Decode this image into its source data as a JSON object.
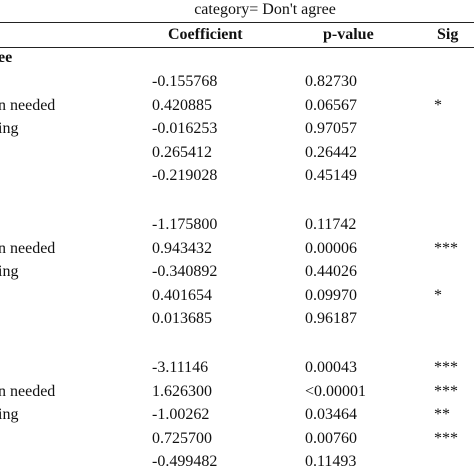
{
  "header": {
    "category": "category= Don't agree",
    "columns": [
      "Coefficient",
      "p-value",
      "Sig"
    ]
  },
  "groups": [
    {
      "label": "ee",
      "rows": [
        {
          "coefficient": "-0.155768",
          "p_value": "0.82730"
        },
        {
          "label": "n needed",
          "coefficient": "0.420885",
          "p_value": "0.06567",
          "sig": "*"
        },
        {
          "label": "ing",
          "coefficient": "-0.016253",
          "p_value": "0.97057"
        },
        {
          "coefficient": "0.265412",
          "p_value": "0.26442"
        },
        {
          "coefficient": "-0.219028",
          "p_value": "0.45149"
        }
      ]
    },
    {
      "rows": [
        {
          "coefficient": "-1.175800",
          "p_value": "0.11742"
        },
        {
          "label": "n needed",
          "coefficient": "0.943432",
          "p_value": "0.00006",
          "sig": "***"
        },
        {
          "label": "ing",
          "coefficient": "-0.340892",
          "p_value": "0.44026"
        },
        {
          "coefficient": "0.401654",
          "p_value": "0.09970",
          "sig": "*"
        },
        {
          "coefficient": "0.013685",
          "p_value": "0.96187"
        }
      ]
    },
    {
      "rows": [
        {
          "coefficient": "-3.11146",
          "p_value": "0.00043",
          "sig": "***"
        },
        {
          "label": "n needed",
          "coefficient": "1.626300",
          "p_value": "<0.00001",
          "sig": "***"
        },
        {
          "label": "ing",
          "coefficient": "-1.00262",
          "p_value": "0.03464",
          "sig": "**"
        },
        {
          "coefficient": "0.725700",
          "p_value": "0.00760",
          "sig": "***"
        },
        {
          "coefficient": "-0.499482",
          "p_value": "0.11493"
        }
      ]
    }
  ]
}
